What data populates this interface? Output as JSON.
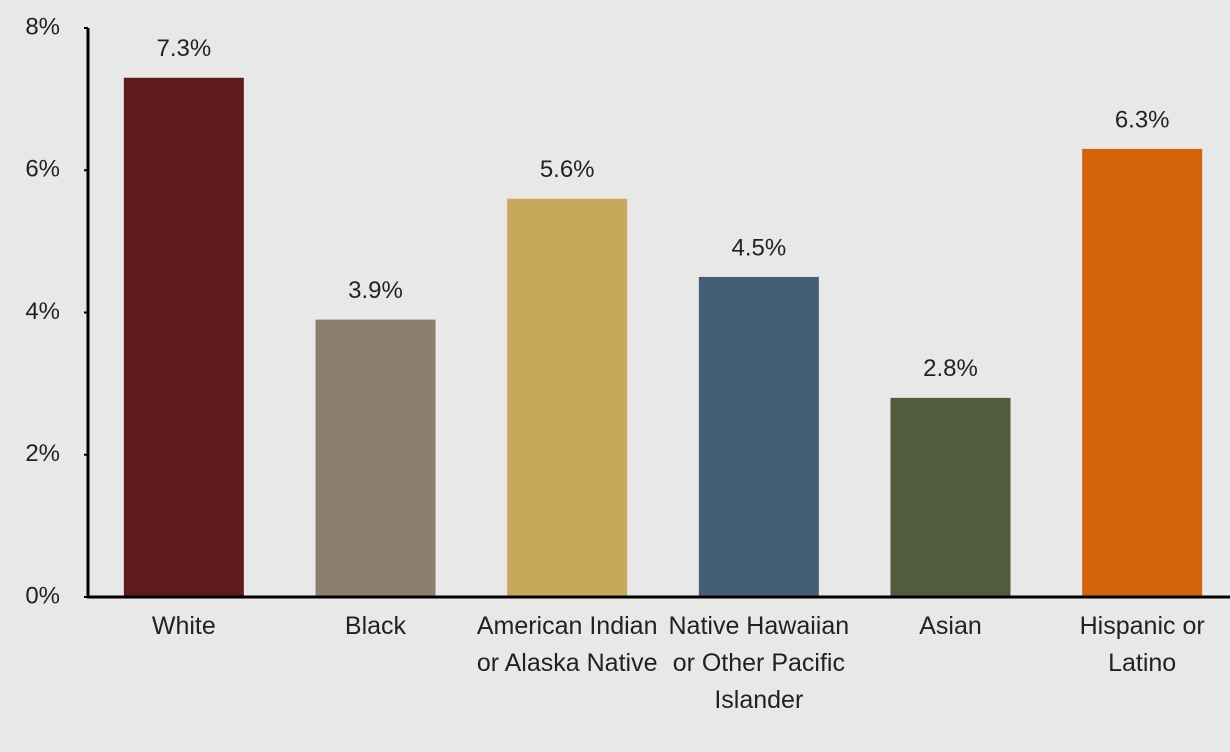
{
  "chart_data": {
    "type": "bar",
    "categories": [
      "White",
      "Black",
      "American Indian or Alaska Native",
      "Native Hawaiian or Other Pacific Islander",
      "Asian",
      "Hispanic or Latino"
    ],
    "values": [
      7.3,
      3.9,
      5.6,
      4.5,
      2.8,
      6.3
    ],
    "value_labels": [
      "7.3%",
      "3.9%",
      "5.6%",
      "4.5%",
      "2.8%",
      "6.3%"
    ],
    "colors": [
      "#5e1a1d",
      "#8b8070",
      "#c8a95b",
      "#445e78",
      "#525a40",
      "#d4640c"
    ],
    "ylim": [
      0,
      8
    ],
    "yticks": [
      {
        "value": 0,
        "label": "0%"
      },
      {
        "value": 2,
        "label": "2%"
      },
      {
        "value": 4,
        "label": "4%"
      },
      {
        "value": 6,
        "label": "6%"
      },
      {
        "value": 8,
        "label": "8%"
      }
    ],
    "grid": false
  }
}
